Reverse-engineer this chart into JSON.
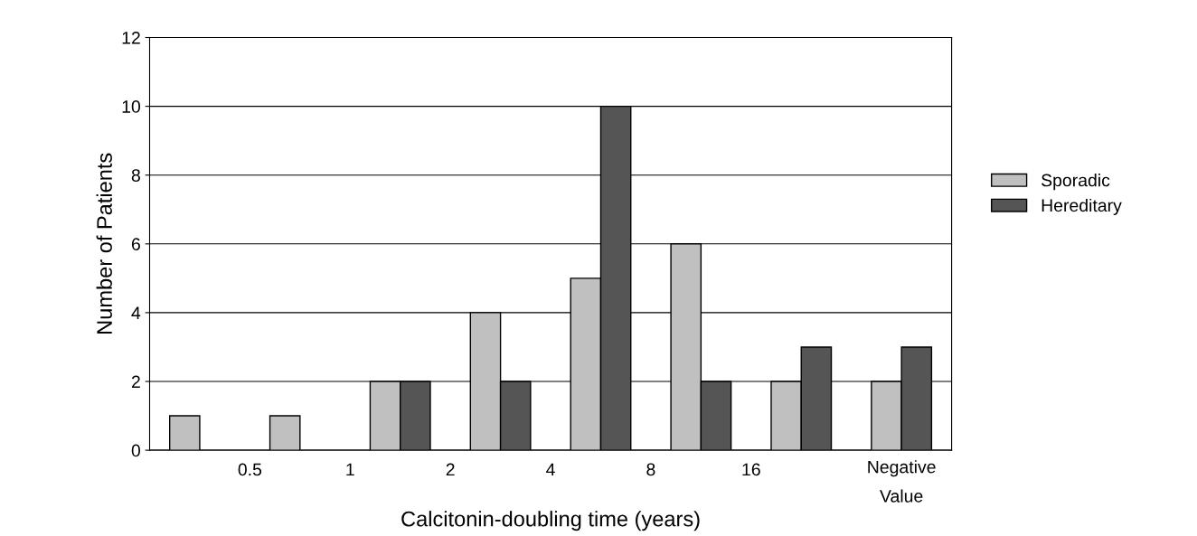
{
  "chart_data": {
    "type": "bar",
    "xlabel": "Calcitonin-doubling time (years)",
    "ylabel": "Number of Patients",
    "categories": [
      null,
      null,
      null,
      null,
      null,
      null,
      null,
      "Negative\nValue"
    ],
    "annotations": [
      "0.5",
      "1",
      "2",
      "4",
      "8",
      "16"
    ],
    "series": [
      {
        "name": "Sporadic",
        "color": "#c0c0c0",
        "values": [
          1,
          1,
          2,
          4,
          5,
          6,
          2,
          2
        ]
      },
      {
        "name": "Hereditary",
        "color": "#555555",
        "values": [
          null,
          null,
          2,
          2,
          10,
          2,
          3,
          3
        ]
      }
    ],
    "ylim": [
      0,
      12
    ],
    "yticks": [
      0,
      2,
      4,
      6,
      8,
      10,
      12
    ],
    "grid": "y",
    "legend": "right"
  }
}
